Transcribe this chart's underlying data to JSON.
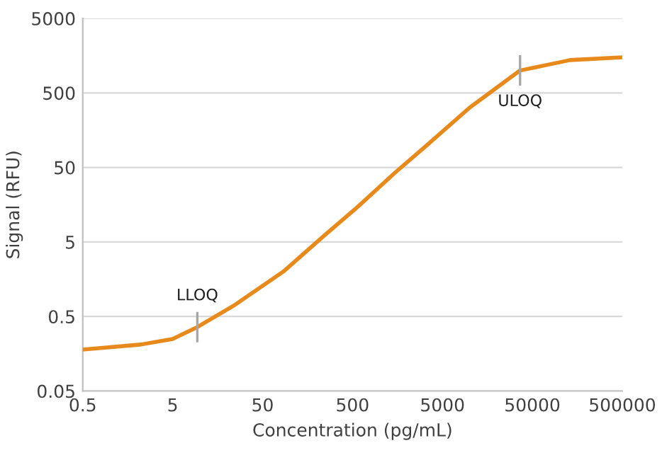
{
  "chart_data": {
    "type": "line",
    "xlabel": "Concentration (pg/mL)",
    "ylabel": "Signal (RFU)",
    "log": "xy",
    "x": [
      0.5,
      2.2,
      5,
      9.4,
      23.5,
      85,
      250,
      535,
      1500,
      3380,
      10000,
      36500,
      132000,
      500000
    ],
    "series": [
      {
        "color": "#e8891c",
        "values": [
          0.18,
          0.21,
          0.25,
          0.36,
          0.69,
          2.0,
          6.3,
          13.8,
          43,
          100,
          316,
          1000,
          1380,
          1500
        ]
      }
    ],
    "xlim": [
      0.5,
      500000
    ],
    "xticks": [
      0.5,
      5,
      50,
      500,
      5000,
      50000,
      500000
    ],
    "ylim": [
      0.05,
      5000
    ],
    "yticks": [
      0.05,
      0.5,
      5,
      50,
      500,
      5000
    ],
    "grid": "y",
    "marker": "none",
    "line_style": "solid",
    "annotations": [
      {
        "text": "LLOQ",
        "x": 9.4,
        "y": 0.36
      },
      {
        "text": "ULOQ",
        "x": 36500,
        "y": 1000
      }
    ]
  }
}
